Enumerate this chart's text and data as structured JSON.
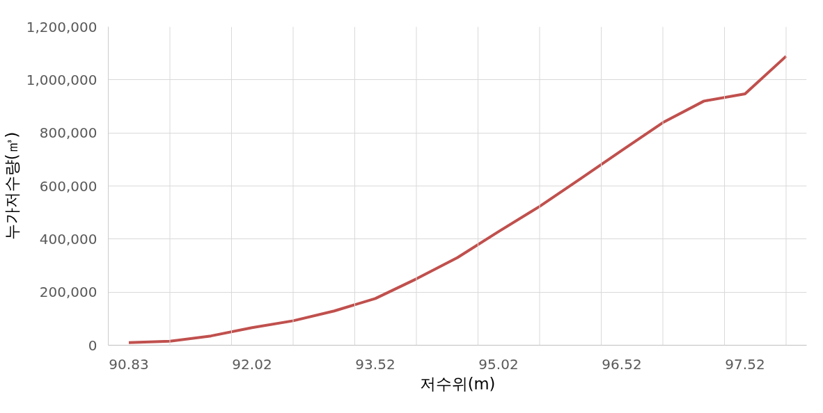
{
  "chart_data": {
    "type": "line",
    "xlabel": "저수위(m)",
    "ylabel": "누가저수량(㎥)",
    "categories": [
      "90.83",
      null,
      null,
      "92.02",
      null,
      null,
      "93.52",
      null,
      null,
      "95.02",
      null,
      null,
      "96.52",
      null,
      null,
      "97.52",
      null
    ],
    "series": [
      {
        "color": "#c0504d",
        "values": [
          10000,
          15000,
          35000,
          66000,
          92000,
          129000,
          176000,
          250000,
          330000,
          428000,
          523000,
          628000,
          734000,
          839000,
          920000,
          947000,
          1089000
        ]
      }
    ],
    "ylim": [
      0,
      1200000
    ],
    "yticks": [
      {
        "value": 0,
        "label": "0"
      },
      {
        "value": 200000,
        "label": "200,000"
      },
      {
        "value": 400000,
        "label": "400,000"
      },
      {
        "value": 600000,
        "label": "600,000"
      },
      {
        "value": 800000,
        "label": "800,000"
      },
      {
        "value": 1000000,
        "label": "1,000,000"
      },
      {
        "value": 1200000,
        "label": "1,200,000"
      }
    ],
    "grid": true,
    "line_style": "solid",
    "marker": "none"
  }
}
